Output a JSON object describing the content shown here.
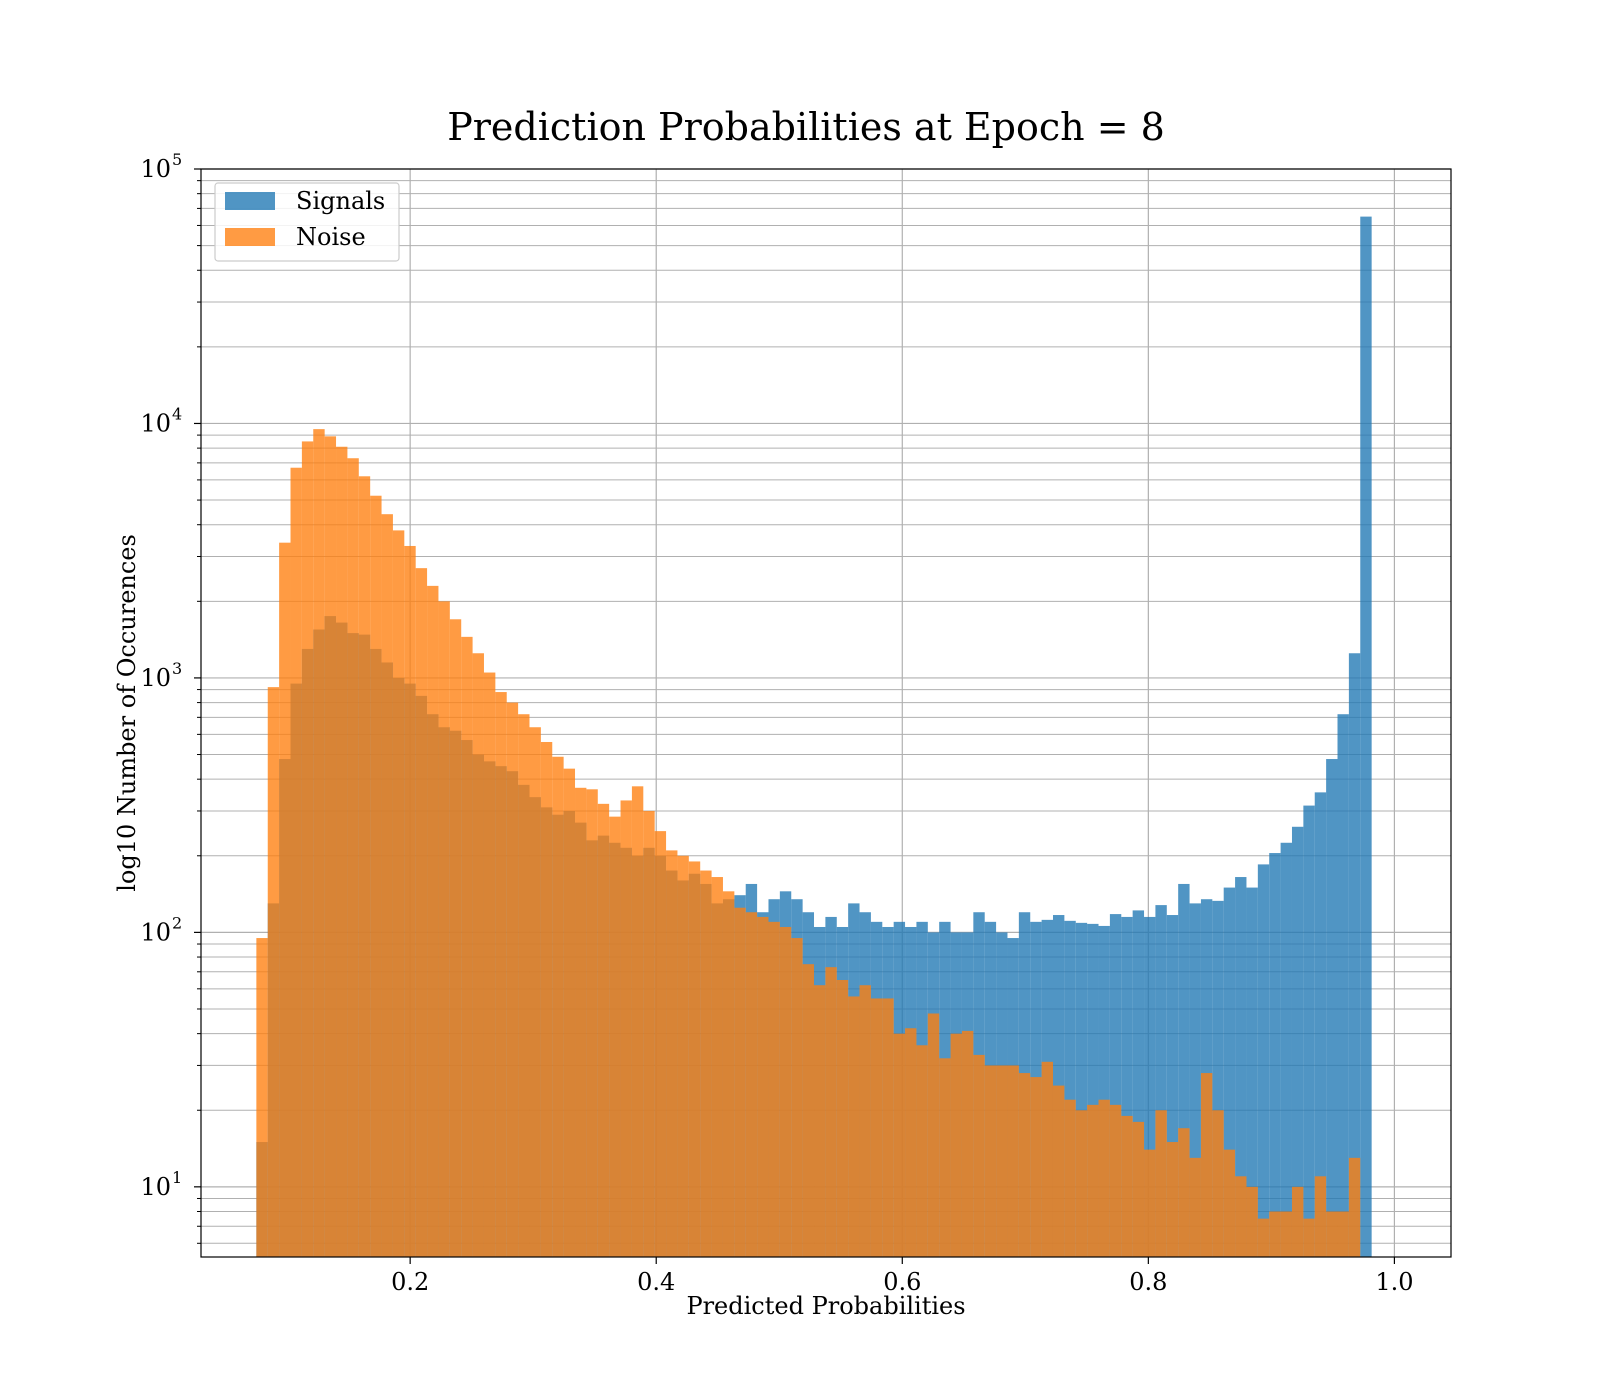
{
  "chart_data": {
    "type": "bar",
    "title": "Prediction Probabilities at Epoch = 8",
    "xlabel": "Predicted Probabilities",
    "ylabel": "log10 Number of Occurences",
    "xlim": [
      0.03,
      1.046
    ],
    "ylim": [
      5.3,
      100000
    ],
    "yscale": "log",
    "grid": true,
    "legend_position": "top-left",
    "x_ticks": [
      {
        "value": 0.2,
        "label": "0.2"
      },
      {
        "value": 0.4,
        "label": "0.4"
      },
      {
        "value": 0.6,
        "label": "0.6"
      },
      {
        "value": 0.8,
        "label": "0.8"
      },
      {
        "value": 1.0,
        "label": "1.0"
      }
    ],
    "y_ticks": [
      {
        "value": 10,
        "base": "10",
        "exp": "1"
      },
      {
        "value": 100,
        "base": "10",
        "exp": "2"
      },
      {
        "value": 1000,
        "base": "10",
        "exp": "3"
      },
      {
        "value": 10000,
        "base": "10",
        "exp": "4"
      },
      {
        "value": 100000,
        "base": "10",
        "exp": "5"
      }
    ],
    "bin_start": 0.075,
    "bin_width": 0.00925,
    "series": [
      {
        "name": "Signals",
        "color": "#1f77b4",
        "opacity": 0.78,
        "values": [
          15,
          130,
          480,
          950,
          1300,
          1550,
          1750,
          1650,
          1500,
          1480,
          1300,
          1150,
          1000,
          950,
          850,
          720,
          640,
          620,
          570,
          500,
          470,
          450,
          430,
          380,
          340,
          310,
          290,
          300,
          270,
          230,
          240,
          225,
          215,
          200,
          215,
          200,
          175,
          160,
          170,
          155,
          130,
          135,
          140,
          155,
          120,
          135,
          145,
          135,
          120,
          105,
          115,
          105,
          130,
          120,
          110,
          105,
          110,
          105,
          110,
          100,
          110,
          100,
          100,
          120,
          110,
          100,
          95,
          120,
          110,
          112,
          117,
          111,
          109,
          108,
          106,
          118,
          115,
          122,
          115,
          128,
          117,
          155,
          130,
          135,
          133,
          150,
          165,
          150,
          185,
          205,
          225,
          260,
          315,
          355,
          480,
          720,
          1250,
          65000
        ]
      },
      {
        "name": "Noise",
        "color": "#ff7f0e",
        "opacity": 0.78,
        "values": [
          95,
          920,
          3400,
          6700,
          8500,
          9500,
          8900,
          8100,
          7300,
          6200,
          5200,
          4400,
          3800,
          3300,
          2700,
          2300,
          2000,
          1700,
          1450,
          1250,
          1050,
          880,
          800,
          720,
          640,
          560,
          490,
          440,
          370,
          365,
          320,
          285,
          330,
          375,
          300,
          250,
          210,
          200,
          190,
          175,
          165,
          145,
          125,
          120,
          115,
          110,
          105,
          95,
          75,
          62,
          73,
          65,
          56,
          62,
          55,
          55,
          40,
          42,
          36,
          48,
          32,
          40,
          41,
          33,
          30,
          30,
          30,
          28,
          27,
          31,
          25,
          22,
          20,
          21,
          22,
          21,
          19,
          18,
          14,
          20,
          15,
          17,
          13,
          28,
          20,
          14,
          11,
          10,
          7.5,
          8,
          8,
          10,
          7.5,
          11,
          8,
          8,
          13
        ]
      }
    ]
  }
}
